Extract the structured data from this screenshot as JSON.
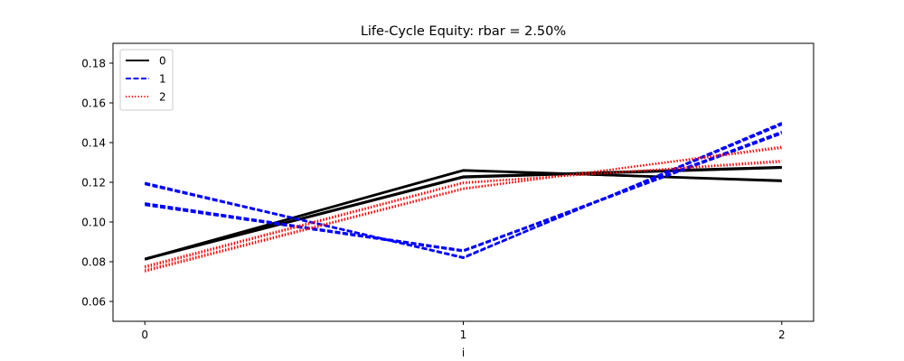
{
  "chart_data": {
    "type": "line",
    "title": "Life-Cycle Equity: rbar = 2.50%",
    "xlabel": "i",
    "ylabel": "",
    "x": [
      0,
      1,
      2
    ],
    "x_ticks": [
      "0",
      "1",
      "2"
    ],
    "xlim": [
      -0.1,
      2.1
    ],
    "ylim": [
      0.05,
      0.19
    ],
    "y_ticks": [
      "0.06",
      "0.08",
      "0.10",
      "0.12",
      "0.14",
      "0.16",
      "0.18"
    ],
    "legend_position": "top-left",
    "grid": false,
    "series": [
      {
        "name": "0",
        "color": "#000000",
        "style": "solid",
        "lines": [
          {
            "values": [
              0.081,
              0.126,
              0.1205
            ]
          },
          {
            "values": [
              0.0812,
              0.1258,
              0.1208
            ]
          },
          {
            "values": [
              0.0815,
              0.1262,
              0.121
            ]
          },
          {
            "values": [
              0.0811,
              0.1224,
              0.1272
            ]
          },
          {
            "values": [
              0.0813,
              0.1227,
              0.1275
            ]
          },
          {
            "values": [
              0.0816,
              0.123,
              0.1278
            ]
          }
        ]
      },
      {
        "name": "1",
        "color": "#0000ff",
        "style": "dashed",
        "lines": [
          {
            "values": [
              0.1095,
              0.0855,
              0.1455
            ]
          },
          {
            "values": [
              0.1085,
              0.0852,
              0.1445
            ]
          },
          {
            "values": [
              0.1092,
              0.0858,
              0.1448
            ]
          },
          {
            "values": [
              0.1198,
              0.0818,
              0.15
            ]
          },
          {
            "values": [
              0.119,
              0.082,
              0.149
            ]
          },
          {
            "values": [
              0.1195,
              0.0823,
              0.1495
            ]
          }
        ]
      },
      {
        "name": "2",
        "color": "#ff0000",
        "style": "dotted",
        "lines": [
          {
            "values": [
              0.075,
              0.1165,
              0.138
            ]
          },
          {
            "values": [
              0.0755,
              0.1168,
              0.1375
            ]
          },
          {
            "values": [
              0.0758,
              0.117,
              0.1372
            ]
          },
          {
            "values": [
              0.077,
              0.1195,
              0.131
            ]
          },
          {
            "values": [
              0.0775,
              0.1198,
              0.1305
            ]
          },
          {
            "values": [
              0.0778,
              0.12,
              0.1302
            ]
          }
        ]
      }
    ]
  }
}
